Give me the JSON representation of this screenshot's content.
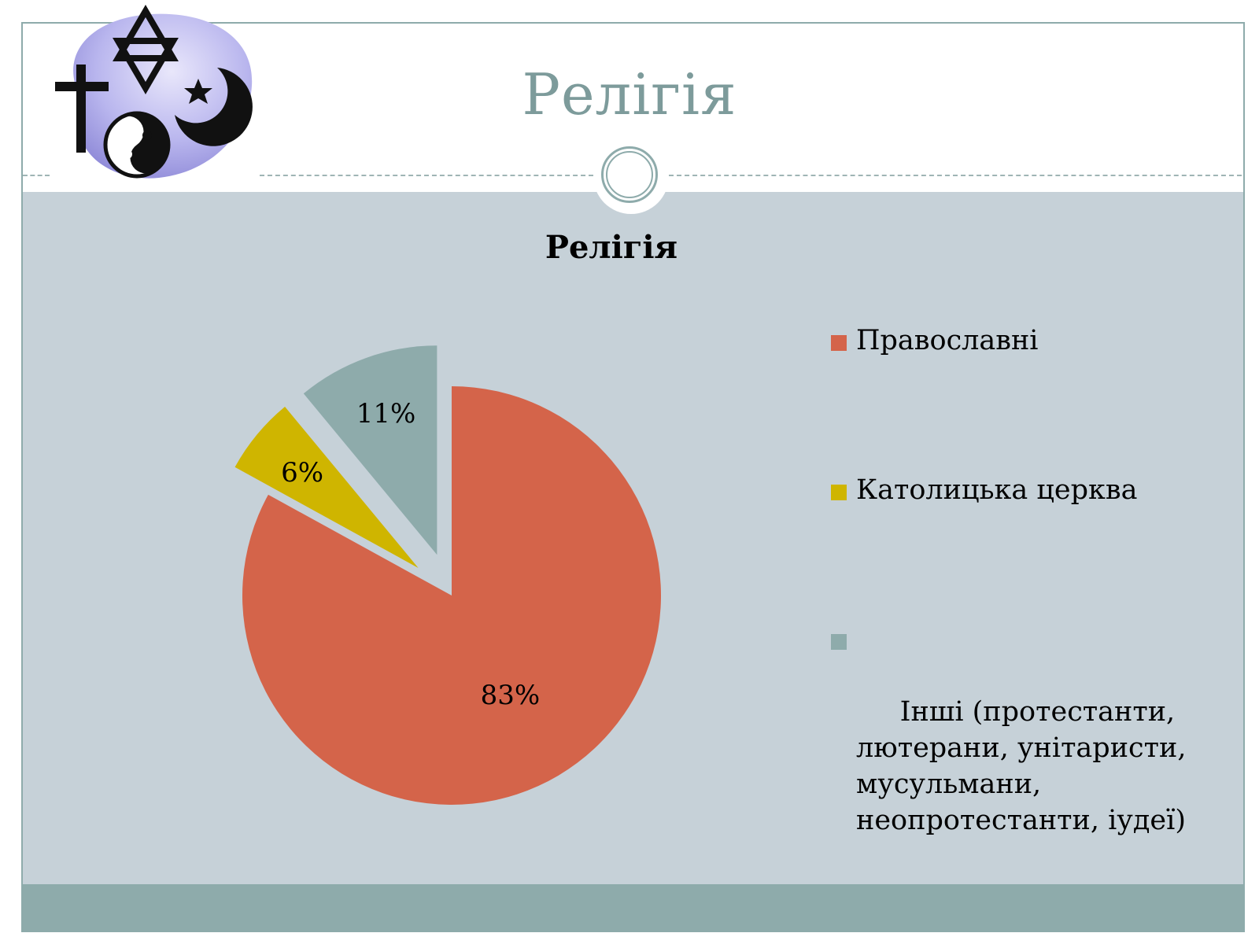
{
  "slide": {
    "title": "Релігія"
  },
  "colors": {
    "accent": "#8eabab",
    "title": "#7d9b9b",
    "content_background": "#c6d1d8"
  },
  "logo": {
    "icon": "religious-symbols-icon"
  },
  "chart_data": {
    "type": "pie",
    "title": "Релігія",
    "categories": [
      "Православні",
      "Католицька церква",
      " Інші (протестанти, лютерани, унітаристи, мусульмани, неопротестанти, іудеї)"
    ],
    "values": [
      83,
      6,
      11
    ],
    "labels": [
      "83%",
      "6%",
      "11%"
    ],
    "colors": [
      "#d4644a",
      "#cfb500",
      "#8eabab"
    ],
    "exploded": [
      false,
      true,
      true
    ],
    "legend_position": "right"
  },
  "legend": {
    "items": [
      {
        "label": "Православні",
        "color": "#d4644a"
      },
      {
        "label": "Католицька церква",
        "color": "#cfb500"
      },
      {
        "label": " Інші (протестанти, лютерани, унітаристи, мусульмани, неопротестанти, іудеї)",
        "color": "#8eabab"
      }
    ]
  }
}
